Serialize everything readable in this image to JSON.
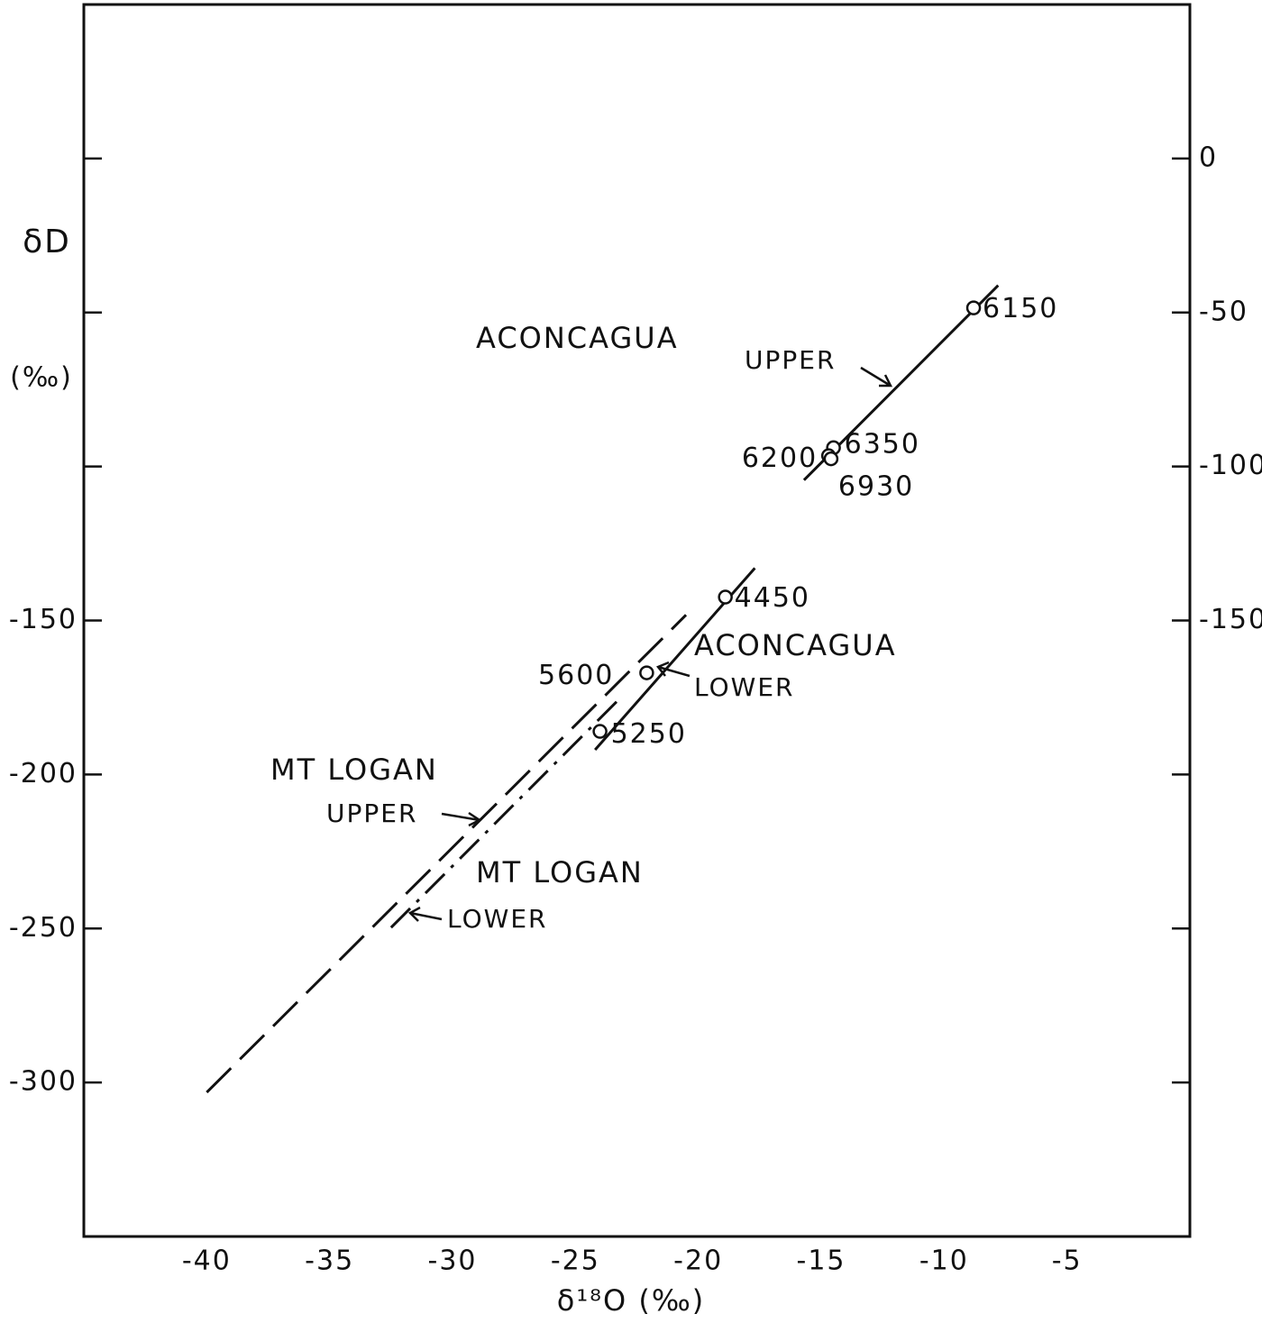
{
  "chart_data": {
    "type": "line",
    "x_label": "δ¹⁸O (‰)",
    "y_label": "δD",
    "y_label_unit": "(‰)",
    "xlim": [
      -45,
      0
    ],
    "xticks": [
      -40,
      -35,
      -30,
      -25,
      -20,
      -15,
      -10,
      -5
    ],
    "ylim": [
      -350,
      50
    ],
    "yticks": [
      {
        "value": 0,
        "label": null
      },
      {
        "value": -50,
        "label": null
      },
      {
        "value": -100,
        "label": null
      },
      -150,
      -200,
      -250,
      -300
    ],
    "y2lim": [
      -350,
      50
    ],
    "y2ticks": [
      0,
      -50,
      -100,
      -150,
      {
        "value": -200,
        "label": null
      },
      {
        "value": -250,
        "label": null
      },
      {
        "value": -300,
        "label": null
      }
    ],
    "series": [
      {
        "style": "solid",
        "x": [
          -15.7,
          -7.8
        ],
        "values": [
          -104.4,
          -41.2
        ]
      },
      {
        "style": "solid",
        "x": [
          -24.2,
          -17.7
        ],
        "values": [
          -192,
          -133
        ]
      },
      {
        "style": "dashed",
        "x": [
          -40,
          -20.5
        ],
        "values": [
          -303.2,
          -148.2
        ]
      },
      {
        "style": "dashdot",
        "x": [
          -32.5,
          -23.1
        ],
        "values": [
          -249.7,
          -174.6
        ]
      }
    ],
    "points": {
      "x": [
        -8.8,
        -14.5,
        -14.7,
        -14.6,
        -18.9,
        -22.1,
        -24.0
      ],
      "values": [
        -48.5,
        -93.9,
        -96.5,
        -97.5,
        -142.4,
        -167,
        -186
      ],
      "labels": [
        "6150",
        "6350",
        "6200",
        "6930",
        "4450",
        "5600",
        "5250"
      ]
    },
    "annotations": [
      "ACONCAGUA",
      "UPPER",
      "ACONCAGUA",
      "LOWER",
      "MT LOGAN",
      "UPPER",
      "MT LOGAN",
      "LOWER"
    ]
  }
}
